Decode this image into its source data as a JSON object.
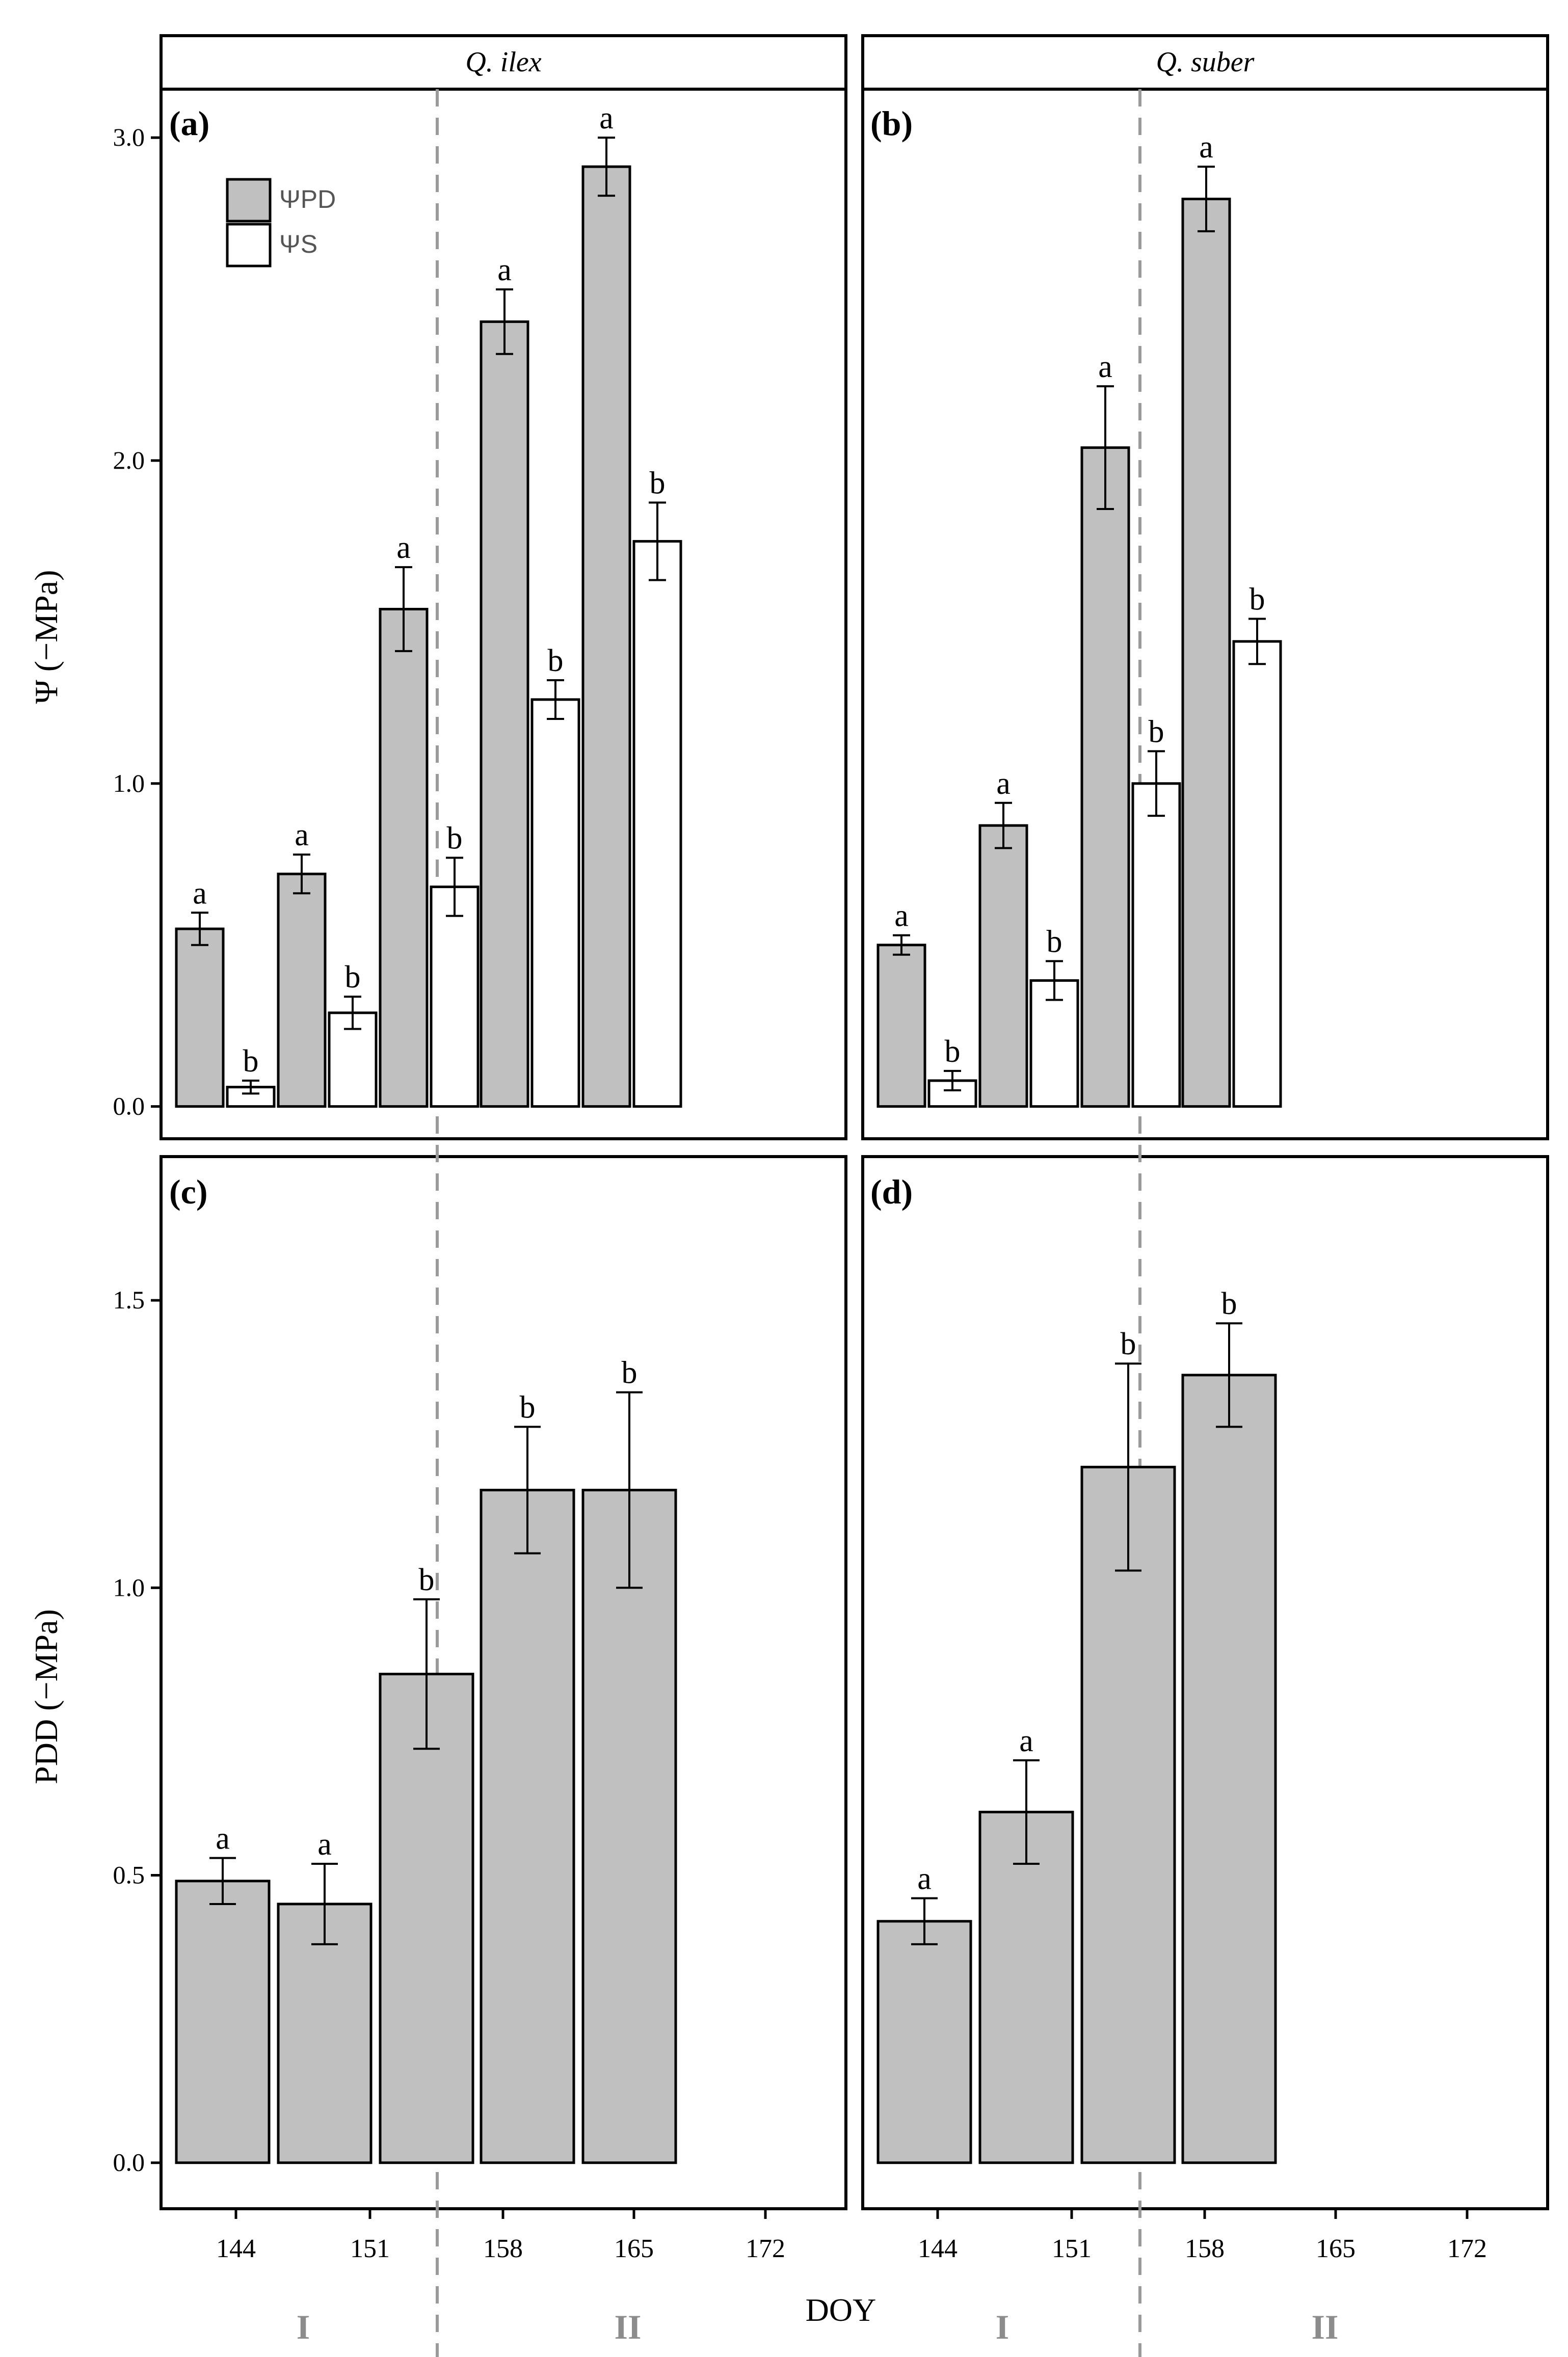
{
  "strip_labels": [
    "Q. ilex",
    "Q. suber"
  ],
  "x_axis_title": "DOY",
  "x_tick_labels": [
    "144",
    "151",
    "158",
    "165",
    "172"
  ],
  "period_labels": [
    "I",
    "II"
  ],
  "legend": {
    "entries": [
      {
        "label": "ΨPD",
        "color": "#c0c0c0"
      },
      {
        "label": "ΨS",
        "color": "#ffffff"
      }
    ]
  },
  "colors": {
    "bar_gray": "#c0c0c0",
    "bar_white": "#ffffff",
    "divider": "#9a9a9a",
    "period_label": "#8c8c8c"
  },
  "chart_data": [
    {
      "panel": "(a)",
      "type": "bar",
      "species": "Q. ilex",
      "ylabel": "Ψ (−MPa)",
      "ylim": [
        -0.1,
        3.15
      ],
      "yticks": [
        "0.0",
        "1.0",
        "2.0",
        "3.0"
      ],
      "categories": [
        "144",
        "151",
        "158",
        "165",
        "172"
      ],
      "series": [
        {
          "name": "ΨPD",
          "values": [
            0.55,
            0.72,
            1.54,
            2.43,
            2.91
          ],
          "errors": [
            0.05,
            0.06,
            0.13,
            0.1,
            0.09
          ],
          "letters": [
            "a",
            "a",
            "a",
            "a",
            "a"
          ]
        },
        {
          "name": "ΨS",
          "values": [
            0.06,
            0.29,
            0.68,
            1.26,
            1.75
          ],
          "errors": [
            0.02,
            0.05,
            0.09,
            0.06,
            0.12
          ],
          "letters": [
            "b",
            "b",
            "b",
            "b",
            "b"
          ]
        }
      ]
    },
    {
      "panel": "(b)",
      "type": "bar",
      "species": "Q. suber",
      "ylabel": "",
      "ylim": [
        -0.1,
        3.15
      ],
      "yticks": [
        "0.0",
        "1.0",
        "2.0",
        "3.0"
      ],
      "categories": [
        "144",
        "151",
        "158",
        "165",
        "172"
      ],
      "series": [
        {
          "name": "ΨPD",
          "values": [
            0.5,
            0.87,
            2.04,
            2.81,
            null
          ],
          "errors": [
            0.03,
            0.07,
            0.19,
            0.1,
            null
          ],
          "letters": [
            "a",
            "a",
            "a",
            "a",
            ""
          ]
        },
        {
          "name": "ΨS",
          "values": [
            0.08,
            0.39,
            1.0,
            1.44,
            null
          ],
          "errors": [
            0.03,
            0.06,
            0.1,
            0.07,
            null
          ],
          "letters": [
            "b",
            "b",
            "b",
            "b",
            ""
          ]
        }
      ]
    },
    {
      "panel": "(c)",
      "type": "bar",
      "species": "Q. ilex",
      "ylabel": "PDD (−MPa)",
      "ylim": [
        -0.08,
        1.75
      ],
      "yticks": [
        "0.0",
        "0.5",
        "1.0",
        "1.5"
      ],
      "categories": [
        "144",
        "151",
        "158",
        "165",
        "172"
      ],
      "series": [
        {
          "name": "PDD",
          "values": [
            0.49,
            0.45,
            0.85,
            1.17,
            1.17
          ],
          "errors": [
            0.04,
            0.07,
            0.13,
            0.11,
            0.17
          ],
          "letters": [
            "a",
            "a",
            "b",
            "b",
            "b"
          ]
        }
      ]
    },
    {
      "panel": "(d)",
      "type": "bar",
      "species": "Q. suber",
      "ylabel": "",
      "ylim": [
        -0.08,
        1.75
      ],
      "yticks": [
        "0.0",
        "0.5",
        "1.0",
        "1.5"
      ],
      "categories": [
        "144",
        "151",
        "158",
        "165",
        "172"
      ],
      "series": [
        {
          "name": "PDD",
          "values": [
            0.42,
            0.61,
            1.21,
            1.37,
            null
          ],
          "errors": [
            0.04,
            0.09,
            0.18,
            0.09,
            null
          ],
          "letters": [
            "a",
            "a",
            "b",
            "b",
            ""
          ]
        }
      ]
    }
  ]
}
